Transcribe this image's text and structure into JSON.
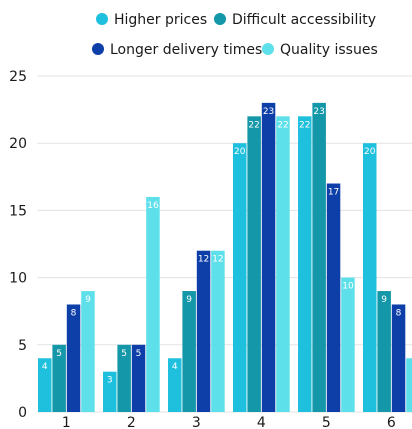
{
  "chart_data": {
    "type": "bar",
    "title": "",
    "xlabel": "",
    "ylabel": "",
    "categories": [
      "1",
      "2",
      "3",
      "4",
      "5",
      "6"
    ],
    "ylim": [
      0,
      25
    ],
    "yticks": [
      0,
      5,
      10,
      15,
      20,
      25
    ],
    "grid": true,
    "legend_position": "top",
    "series": [
      {
        "name": "Higher prices",
        "color": "#1ec0de",
        "values": [
          4,
          3,
          4,
          20,
          22,
          20
        ]
      },
      {
        "name": "Difficult accessibility",
        "color": "#1497a8",
        "values": [
          5,
          5,
          9,
          22,
          23,
          9
        ]
      },
      {
        "name": "Longer delivery times",
        "color": "#0e3fa8",
        "values": [
          8,
          5,
          12,
          23,
          17,
          8
        ]
      },
      {
        "name": "Quality issues",
        "color": "#5ee0ea",
        "values": [
          9,
          16,
          12,
          22,
          10,
          4
        ]
      }
    ],
    "data_labels": [
      [
        "4",
        "5",
        "8",
        "9"
      ],
      [
        "3",
        "5",
        "5",
        "16"
      ],
      [
        "4",
        "9",
        "12",
        "12"
      ],
      [
        "20",
        "22",
        "23",
        "22"
      ],
      [
        "22",
        "23",
        "17",
        "10"
      ],
      [
        "20",
        "9",
        "8",
        ""
      ]
    ]
  }
}
